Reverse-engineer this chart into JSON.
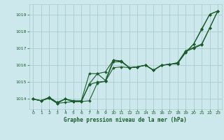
{
  "background_color": "#cce8ec",
  "grid_color": "#aacccc",
  "line_color": "#1a5c2a",
  "text_color": "#1a5c2a",
  "xlabel": "Graphe pression niveau de la mer (hPa)",
  "xlim": [
    -0.5,
    23.5
  ],
  "ylim": [
    1013.4,
    1019.6
  ],
  "yticks": [
    1014,
    1015,
    1016,
    1017,
    1018,
    1019
  ],
  "xticks": [
    0,
    1,
    2,
    3,
    4,
    5,
    6,
    7,
    8,
    9,
    10,
    11,
    12,
    13,
    14,
    15,
    16,
    17,
    18,
    19,
    20,
    21,
    22,
    23
  ],
  "series": [
    [
      1014.0,
      1013.9,
      1014.05,
      1013.75,
      1014.0,
      1013.85,
      1013.85,
      1013.9,
      1014.95,
      1015.05,
      1016.2,
      1016.2,
      1015.85,
      1015.9,
      1016.0,
      1015.7,
      1016.0,
      1016.05,
      1016.1,
      1016.75,
      1017.25,
      1018.15,
      1019.0,
      1019.2
    ],
    [
      1014.0,
      1013.9,
      1014.05,
      1013.75,
      1013.8,
      1013.85,
      1013.85,
      1014.85,
      1015.0,
      1015.05,
      1015.85,
      1015.9,
      1015.85,
      1015.9,
      1016.0,
      1015.7,
      1016.0,
      1016.05,
      1016.1,
      1016.75,
      1017.25,
      1018.1,
      1019.0,
      1019.2
    ],
    [
      1014.0,
      1013.9,
      1014.1,
      1013.8,
      1014.0,
      1013.85,
      1013.85,
      1014.9,
      1015.5,
      1015.1,
      1016.3,
      1016.2,
      1015.85,
      1015.9,
      1016.0,
      1015.7,
      1016.0,
      1016.05,
      1016.1,
      1016.8,
      1017.0,
      1017.2,
      1018.2,
      1019.2
    ],
    [
      1014.0,
      1013.9,
      1014.1,
      1013.8,
      1014.0,
      1013.9,
      1013.9,
      1015.5,
      1015.5,
      1015.6,
      1016.3,
      1016.25,
      1015.85,
      1015.9,
      1016.0,
      1015.7,
      1016.0,
      1016.05,
      1016.15,
      1016.85,
      1017.05,
      1017.25,
      1018.2,
      1019.2
    ]
  ]
}
